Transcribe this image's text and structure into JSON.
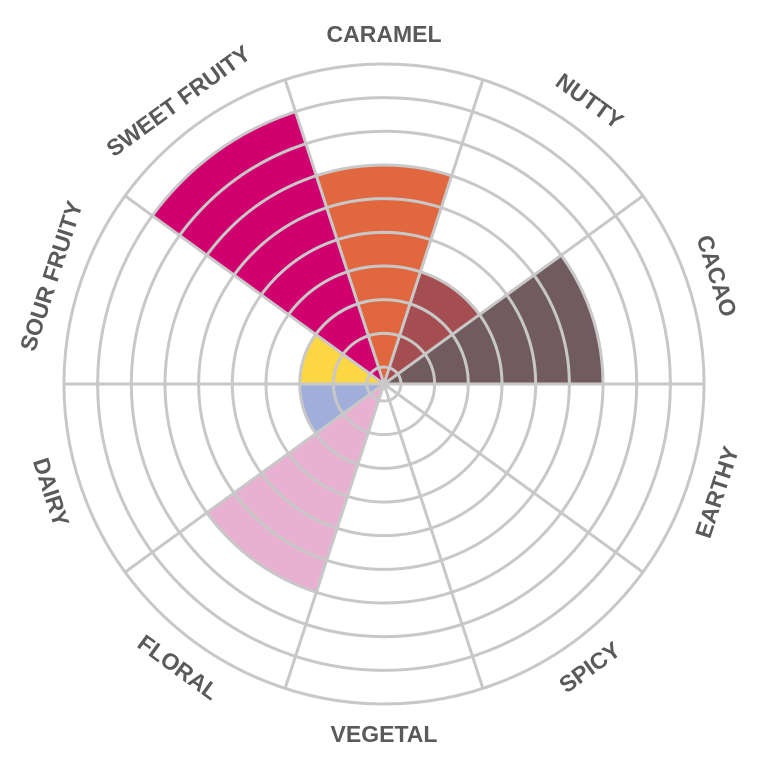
{
  "chart_data": {
    "type": "polar-area",
    "title": "",
    "scale_max": 10,
    "grid": true,
    "categories": [
      "CACAO",
      "NUTTY",
      "CARAMEL",
      "SWEET FRUITY",
      "SOUR FRUITY",
      "DAIRY",
      "FLORAL",
      "VEGETAL",
      "SPICY",
      "EARTHY"
    ],
    "values": [
      7,
      4,
      7,
      9,
      3,
      3,
      7,
      0,
      0,
      0
    ],
    "colors": [
      "#705B5E",
      "#A44E52",
      "#E0673E",
      "#D0006F",
      "#FDD643",
      "#A2AEDA",
      "#E8B1D1",
      "#FFFFFF",
      "#FFFFFF",
      "#FFFFFF"
    ],
    "grid_color": "#C8C8C8",
    "label_color": "#5A5A5A"
  }
}
